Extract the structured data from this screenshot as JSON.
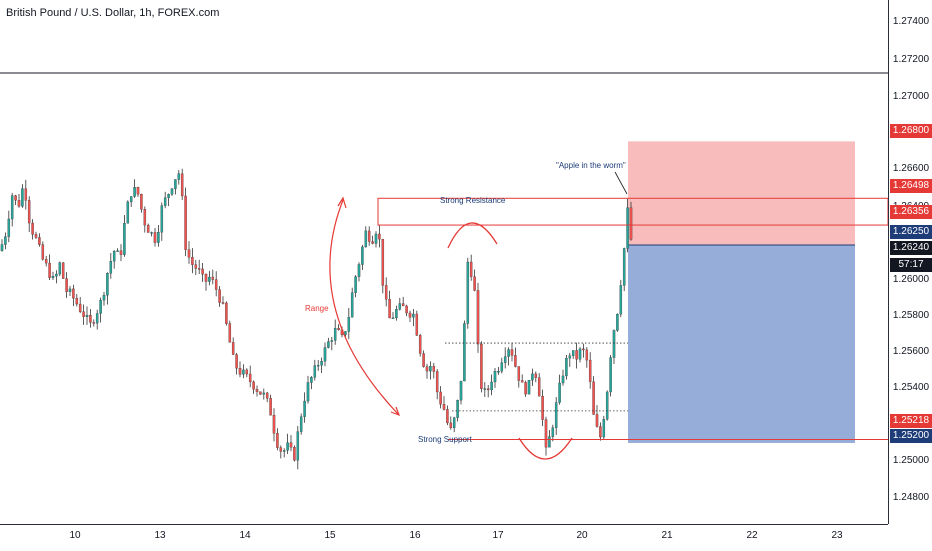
{
  "header": {
    "title": "British Pound / U.S. Dollar, 1h, FOREX.com"
  },
  "colors": {
    "up": "#26a69a",
    "down": "#ef5350",
    "stop_zone": "#f7a5a5",
    "target_zone": "#8fa9d6",
    "red": "#e53935",
    "navy": "#1d3c78",
    "countdown_bg": "#131722"
  },
  "y_axis": {
    "ticks": [
      "1.27400",
      "1.27200",
      "1.27000",
      "1.26600",
      "1.26400",
      "1.26000",
      "1.25800",
      "1.25600",
      "1.25400",
      "1.25000",
      "1.24800"
    ]
  },
  "x_axis": {
    "labels": [
      "10",
      "13",
      "14",
      "15",
      "16",
      "17",
      "20",
      "21",
      "22",
      "23"
    ]
  },
  "price_tags": {
    "stop": "1.26800",
    "resistance_top": "1.26498",
    "resistance": "1.26356",
    "entry": "1.26250",
    "last": "1.26240",
    "countdown": "57:17",
    "support": "1.25218",
    "target": "1.25200"
  },
  "annotations": {
    "apple": "\"Apple in the worm\"",
    "strong_resistance": "Strong Resistance",
    "strong_support": "Strong Support",
    "range": "Range"
  },
  "chart_data": {
    "type": "candlestick",
    "title": "British Pound / U.S. Dollar, 1h, FOREX.com",
    "x_ticks": [
      "10",
      "13",
      "14",
      "15",
      "16",
      "17",
      "20",
      "21",
      "22",
      "23"
    ],
    "ylim": [
      1.2477,
      1.2755
    ],
    "key_levels": {
      "strong_resistance_top": 1.26498,
      "strong_resistance": 1.26356,
      "entry": 1.2625,
      "last_price": 1.2624,
      "stop_loss": 1.268,
      "strong_support": 1.25218,
      "take_profit": 1.252,
      "range_upper": 1.2573,
      "range_lower": 1.2537
    },
    "close_path": [
      [
        0,
        1.2622
      ],
      [
        6,
        1.2632
      ],
      [
        12,
        1.2652
      ],
      [
        18,
        1.2645
      ],
      [
        24,
        1.2658
      ],
      [
        30,
        1.2636
      ],
      [
        36,
        1.2628
      ],
      [
        42,
        1.2618
      ],
      [
        48,
        1.2612
      ],
      [
        54,
        1.2605
      ],
      [
        60,
        1.2615
      ],
      [
        66,
        1.2601
      ],
      [
        72,
        1.2598
      ],
      [
        78,
        1.2593
      ],
      [
        84,
        1.2588
      ],
      [
        90,
        1.2582
      ],
      [
        96,
        1.2589
      ],
      [
        102,
        1.2596
      ],
      [
        108,
        1.2612
      ],
      [
        114,
        1.2622
      ],
      [
        120,
        1.2618
      ],
      [
        126,
        1.2642
      ],
      [
        132,
        1.2655
      ],
      [
        138,
        1.2652
      ],
      [
        144,
        1.2638
      ],
      [
        150,
        1.2632
      ],
      [
        156,
        1.2628
      ],
      [
        162,
        1.2645
      ],
      [
        168,
        1.2652
      ],
      [
        174,
        1.266
      ],
      [
        180,
        1.2664
      ],
      [
        186,
        1.2622
      ],
      [
        192,
        1.2615
      ],
      [
        198,
        1.2612
      ],
      [
        204,
        1.2605
      ],
      [
        210,
        1.2608
      ],
      [
        216,
        1.2602
      ],
      [
        222,
        1.2594
      ],
      [
        228,
        1.2578
      ],
      [
        234,
        1.2562
      ],
      [
        240,
        1.2558
      ],
      [
        246,
        1.2555
      ],
      [
        252,
        1.2552
      ],
      [
        258,
        1.2548
      ],
      [
        264,
        1.2545
      ],
      [
        270,
        1.2538
      ],
      [
        276,
        1.2522
      ],
      [
        282,
        1.2515
      ],
      [
        288,
        1.2518
      ],
      [
        294,
        1.2512
      ],
      [
        300,
        1.2532
      ],
      [
        306,
        1.2548
      ],
      [
        312,
        1.2555
      ],
      [
        318,
        1.2562
      ],
      [
        324,
        1.2568
      ],
      [
        330,
        1.2575
      ],
      [
        336,
        1.258
      ],
      [
        342,
        1.2575
      ],
      [
        348,
        1.2585
      ],
      [
        354,
        1.2605
      ],
      [
        360,
        1.2618
      ],
      [
        366,
        1.2632
      ],
      [
        372,
        1.2628
      ],
      [
        378,
        1.2636
      ],
      [
        384,
        1.2598
      ],
      [
        390,
        1.2585
      ],
      [
        396,
        1.259
      ],
      [
        402,
        1.2592
      ],
      [
        408,
        1.259
      ],
      [
        414,
        1.2588
      ],
      [
        420,
        1.257
      ],
      [
        426,
        1.2558
      ],
      [
        432,
        1.2562
      ],
      [
        438,
        1.2545
      ],
      [
        444,
        1.2538
      ],
      [
        450,
        1.2525
      ],
      [
        456,
        1.2535
      ],
      [
        462,
        1.2558
      ],
      [
        468,
        1.2618
      ],
      [
        474,
        1.2605
      ],
      [
        480,
        1.2552
      ],
      [
        486,
        1.2545
      ],
      [
        492,
        1.2555
      ],
      [
        498,
        1.256
      ],
      [
        504,
        1.2568
      ],
      [
        510,
        1.2572
      ],
      [
        516,
        1.256
      ],
      [
        522,
        1.255
      ],
      [
        528,
        1.2548
      ],
      [
        534,
        1.2562
      ],
      [
        540,
        1.2545
      ],
      [
        546,
        1.2515
      ],
      [
        552,
        1.2528
      ],
      [
        558,
        1.2545
      ],
      [
        564,
        1.256
      ],
      [
        570,
        1.2568
      ],
      [
        576,
        1.2565
      ],
      [
        582,
        1.257
      ],
      [
        588,
        1.2562
      ],
      [
        594,
        1.2532
      ],
      [
        600,
        1.2522
      ],
      [
        606,
        1.2542
      ],
      [
        612,
        1.2575
      ],
      [
        618,
        1.2592
      ],
      [
        624,
        1.2622
      ],
      [
        628,
        1.2645
      ],
      [
        631,
        1.2628
      ],
      [
        634,
        1.2624
      ]
    ]
  }
}
